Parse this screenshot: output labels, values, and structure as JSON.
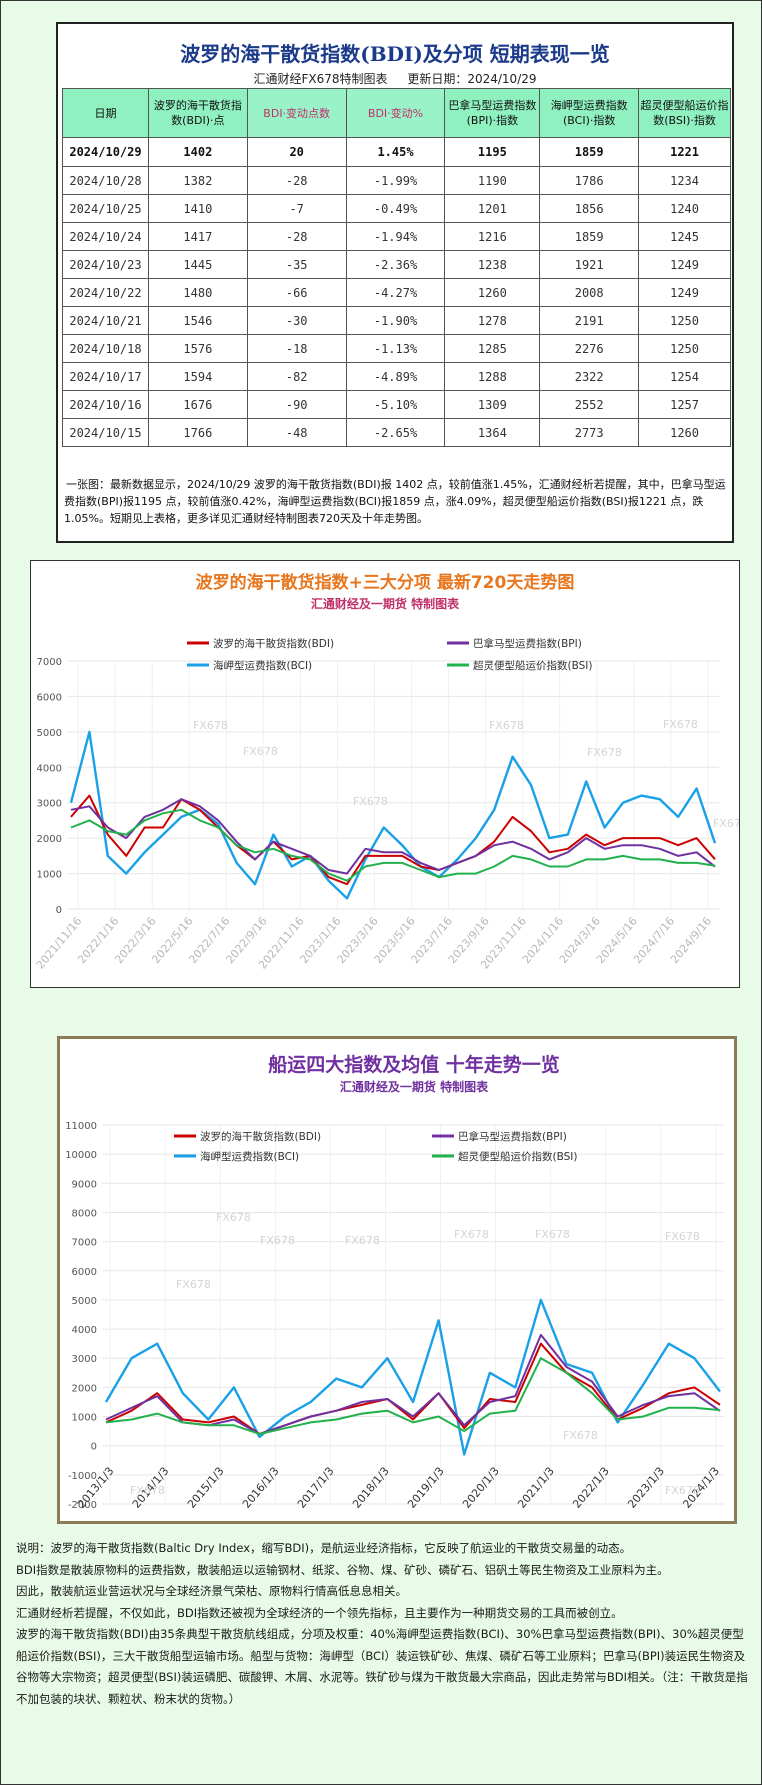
{
  "panel1": {
    "title": "波罗的海干散货指数(BDI)及分项 短期表现一览",
    "source": "汇通财经FX678特制图表",
    "update": "更新日期：2024/10/29",
    "headers": [
      "日期",
      "波罗的海干散货指数(BDI)·点",
      "BDI·变动点数",
      "BDI·变动%",
      "巴拿马型运费指数(BPI)·指数",
      "海岬型运费指数(BCI)·指数",
      "超灵便型船运价指数(BSI)·指数"
    ],
    "rows": [
      [
        "2024/10/29",
        "1402",
        "20",
        "1.45%",
        "1195",
        "1859",
        "1221"
      ],
      [
        "2024/10/28",
        "1382",
        "-28",
        "-1.99%",
        "1190",
        "1786",
        "1234"
      ],
      [
        "2024/10/25",
        "1410",
        "-7",
        "-0.49%",
        "1201",
        "1856",
        "1240"
      ],
      [
        "2024/10/24",
        "1417",
        "-28",
        "-1.94%",
        "1216",
        "1859",
        "1245"
      ],
      [
        "2024/10/23",
        "1445",
        "-35",
        "-2.36%",
        "1238",
        "1921",
        "1249"
      ],
      [
        "2024/10/22",
        "1480",
        "-66",
        "-4.27%",
        "1260",
        "2008",
        "1249"
      ],
      [
        "2024/10/21",
        "1546",
        "-30",
        "-1.90%",
        "1278",
        "2191",
        "1250"
      ],
      [
        "2024/10/18",
        "1576",
        "-18",
        "-1.13%",
        "1285",
        "2276",
        "1250"
      ],
      [
        "2024/10/17",
        "1594",
        "-82",
        "-4.89%",
        "1288",
        "2322",
        "1254"
      ],
      [
        "2024/10/16",
        "1676",
        "-90",
        "-5.10%",
        "1309",
        "2552",
        "1257"
      ],
      [
        "2024/10/15",
        "1766",
        "-48",
        "-2.65%",
        "1364",
        "2773",
        "1260"
      ]
    ],
    "note": "一张图：最新数据显示，2024/10/29 波罗的海干散货指数(BDI)报 1402 点，较前值涨1.45%，汇通财经析若提醒，其中，巴拿马型运费指数(BPI)报1195 点，较前值涨0.42%，海岬型运费指数(BCI)报1859 点，涨4.09%，超灵便型船运价指数(BSI)报1221 点，跌1.05%。短期见上表格，更多详见汇通财经特制图表720天及十年走势图。"
  },
  "chart_data": [
    {
      "type": "line",
      "title": "波罗的海干散货指数+三大分项 最新720天走势图",
      "subtitle": "汇通财经及一期货 特制图表",
      "watermark": "FX678",
      "ylim": [
        0,
        7000
      ],
      "yticks": [
        0,
        1000,
        2000,
        3000,
        4000,
        5000,
        6000,
        7000
      ],
      "xticks": [
        "2021/11/16",
        "2022/1/16",
        "2022/3/16",
        "2022/5/16",
        "2022/7/16",
        "2022/9/16",
        "2022/11/16",
        "2023/1/16",
        "2023/3/16",
        "2023/5/16",
        "2023/7/16",
        "2023/9/16",
        "2023/11/16",
        "2024/1/16",
        "2024/3/16",
        "2024/5/16",
        "2024/7/16",
        "2024/9/16"
      ],
      "x": [
        "2021/11/16",
        "2021/12/16",
        "2022/1/16",
        "2022/2/16",
        "2022/3/16",
        "2022/4/16",
        "2022/5/16",
        "2022/6/16",
        "2022/7/16",
        "2022/8/16",
        "2022/9/16",
        "2022/10/16",
        "2022/11/16",
        "2022/12/16",
        "2023/1/16",
        "2023/2/16",
        "2023/3/16",
        "2023/4/16",
        "2023/5/16",
        "2023/6/16",
        "2023/7/16",
        "2023/8/16",
        "2023/9/16",
        "2023/10/16",
        "2023/11/16",
        "2023/12/16",
        "2024/1/16",
        "2024/2/16",
        "2024/3/16",
        "2024/4/16",
        "2024/5/16",
        "2024/6/16",
        "2024/7/16",
        "2024/8/16",
        "2024/9/16",
        "2024/10/29"
      ],
      "legend_position": "top",
      "series": [
        {
          "name": "波罗的海干散货指数(BDI)",
          "color": "#cc0000",
          "values": [
            2600,
            3200,
            2100,
            1500,
            2300,
            2300,
            3100,
            2800,
            2300,
            1800,
            1400,
            1900,
            1400,
            1500,
            900,
            700,
            1500,
            1500,
            1500,
            1200,
            1100,
            1300,
            1500,
            1900,
            2600,
            2200,
            1600,
            1700,
            2100,
            1800,
            2000,
            2000,
            2000,
            1800,
            2000,
            1402
          ]
        },
        {
          "name": "巴拿马型运费指数(BPI)",
          "color": "#7030a0",
          "values": [
            2800,
            2900,
            2300,
            2000,
            2600,
            2800,
            3100,
            2900,
            2500,
            1900,
            1400,
            1900,
            1700,
            1500,
            1100,
            1000,
            1700,
            1600,
            1600,
            1300,
            1100,
            1300,
            1500,
            1800,
            1900,
            1700,
            1400,
            1600,
            2000,
            1700,
            1800,
            1800,
            1700,
            1500,
            1600,
            1195
          ]
        },
        {
          "name": "海岬型运费指数(BCI)",
          "color": "#1aa0e8",
          "values": [
            3000,
            5000,
            1500,
            1000,
            1600,
            2100,
            2600,
            2800,
            2400,
            1300,
            700,
            2100,
            1200,
            1500,
            800,
            300,
            1400,
            2300,
            1800,
            1200,
            900,
            1400,
            2000,
            2800,
            4300,
            3500,
            2000,
            2100,
            3600,
            2300,
            3000,
            3200,
            3100,
            2600,
            3400,
            1859
          ]
        },
        {
          "name": "超灵便型船运价指数(BSI)",
          "color": "#22b14c",
          "values": [
            2300,
            2500,
            2200,
            2100,
            2500,
            2700,
            2800,
            2500,
            2300,
            1800,
            1600,
            1700,
            1500,
            1400,
            1000,
            800,
            1200,
            1300,
            1300,
            1100,
            900,
            1000,
            1000,
            1200,
            1500,
            1400,
            1200,
            1200,
            1400,
            1400,
            1500,
            1400,
            1400,
            1300,
            1300,
            1221
          ]
        }
      ]
    },
    {
      "type": "line",
      "title": "船运四大指数及均值 十年走势一览",
      "subtitle": "汇通财经及一期货 特制图表",
      "watermark": "FX678",
      "ylim": [
        -2000,
        11000
      ],
      "yticks": [
        -2000,
        -1000,
        0,
        1000,
        2000,
        3000,
        4000,
        5000,
        6000,
        7000,
        8000,
        9000,
        10000,
        11000
      ],
      "xticks": [
        "2013/1/3",
        "2014/1/3",
        "2015/1/3",
        "2016/1/3",
        "2017/1/3",
        "2018/1/3",
        "2019/1/3",
        "2020/1/3",
        "2021/1/3",
        "2022/1/3",
        "2023/1/3",
        "2024/1/3"
      ],
      "x": [
        "2013/1",
        "2013/7",
        "2014/1",
        "2014/7",
        "2015/1",
        "2015/7",
        "2016/1",
        "2016/7",
        "2017/1",
        "2017/7",
        "2018/1",
        "2018/7",
        "2019/1",
        "2019/7",
        "2020/1",
        "2020/7",
        "2021/1",
        "2021/7",
        "2022/1",
        "2022/7",
        "2023/1",
        "2023/7",
        "2024/1",
        "2024/7",
        "2024/10"
      ],
      "legend_position": "top",
      "series": [
        {
          "name": "波罗的海干散货指数(BDI)",
          "color": "#cc0000",
          "values": [
            800,
            1200,
            1800,
            900,
            800,
            1000,
            400,
            700,
            1000,
            1200,
            1400,
            1600,
            900,
            1800,
            600,
            1600,
            1500,
            3500,
            2500,
            2000,
            900,
            1300,
            1800,
            2000,
            1402
          ]
        },
        {
          "name": "巴拿马型运费指数(BPI)",
          "color": "#7030a0",
          "values": [
            900,
            1300,
            1700,
            800,
            700,
            900,
            400,
            700,
            1000,
            1200,
            1500,
            1600,
            1000,
            1800,
            700,
            1500,
            1700,
            3800,
            2700,
            2200,
            1000,
            1400,
            1700,
            1800,
            1195
          ]
        },
        {
          "name": "海岬型运费指数(BCI)",
          "color": "#1aa0e8",
          "values": [
            1500,
            3000,
            3500,
            1800,
            900,
            2000,
            300,
            1000,
            1500,
            2300,
            2000,
            3000,
            1500,
            4300,
            -300,
            2500,
            2000,
            5000,
            2800,
            2500,
            800,
            2100,
            3500,
            3000,
            1859
          ]
        },
        {
          "name": "超灵便型船运价指数(BSI)",
          "color": "#22b14c",
          "values": [
            800,
            900,
            1100,
            800,
            700,
            700,
            400,
            600,
            800,
            900,
            1100,
            1200,
            800,
            1000,
            500,
            1100,
            1200,
            3000,
            2500,
            1800,
            900,
            1000,
            1300,
            1300,
            1221
          ]
        }
      ]
    }
  ],
  "explanation": [
    "说明：波罗的海干散货指数(Baltic Dry Index，缩写BDI)，是航运业经济指标，它反映了航运业的干散货交易量的动态。",
    "BDI指数是散装原物料的运费指数，散装船运以运输钢材、纸浆、谷物、煤、矿砂、磷矿石、铝矾土等民生物资及工业原料为主。",
    "因此，散装航运业营运状况与全球经济景气荣枯、原物料行情高低息息相关。",
    "汇通财经析若提醒，不仅如此，BDI指数还被视为全球经济的一个领先指标，且主要作为一种期货交易的工具而被创立。",
    "波罗的海干散货指数(BDI)由35条典型干散货航线组成，分项及权重：40%海岬型运费指数(BCI)、30%巴拿马型运费指数(BPI)、30%超灵便型船运价指数(BSI)，三大干散货船型运输市场。船型与货物：海岬型（BCI）装运铁矿砂、焦煤、磷矿石等工业原料；巴拿马(BPI)装运民生物资及谷物等大宗物资；超灵便型(BSI)装运磷肥、碳酸钾、木屑、水泥等。铁矿砂与煤为干散货最大宗商品，因此走势常与BDI相关。（注：干散货是指不加包装的块状、颗粒状、粉末状的货物。）"
  ]
}
